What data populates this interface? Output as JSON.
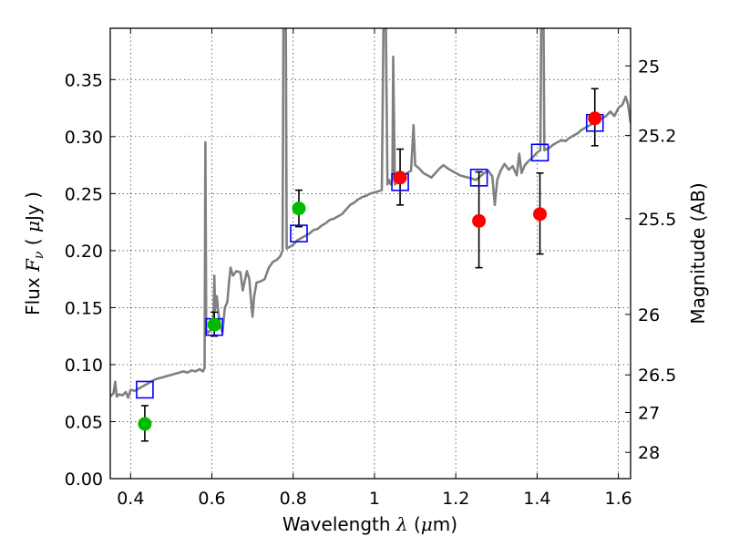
{
  "chart_data": {
    "type": "line",
    "xlabel": "Wavelength  λ (μm)",
    "ylabel": "Flux  F_ν  ( μJy )",
    "ylabel_parts": {
      "a": "Flux ",
      "fsym": "F",
      "fsub": "ν",
      "b": "  ( ",
      "mu": "μ",
      "c": "Jy )"
    },
    "xlabel_parts": {
      "a": "Wavelength  ",
      "lam": "λ",
      "b": " (",
      "mu": "μ",
      "c": "m)"
    },
    "y2label": "Magnitude (AB)",
    "xlim": [
      0.35,
      1.63
    ],
    "ylim": [
      0.0,
      0.395
    ],
    "xticks": [
      0.4,
      0.6,
      0.8,
      1.0,
      1.2,
      1.4,
      1.6
    ],
    "xtick_labels": [
      "0.4",
      "0.6",
      "0.8",
      "1",
      "1.2",
      "1.4",
      "1.6"
    ],
    "yticks": [
      0.0,
      0.05,
      0.1,
      0.15,
      0.2,
      0.25,
      0.3,
      0.35
    ],
    "ytick_labels": [
      "0.00",
      "0.05",
      "0.10",
      "0.15",
      "0.20",
      "0.25",
      "0.30",
      "0.35"
    ],
    "y2ticks": [
      {
        "label": "25",
        "flux": 0.362
      },
      {
        "label": "25.2",
        "flux": 0.301
      },
      {
        "label": "25.5",
        "flux": 0.228
      },
      {
        "label": "26",
        "flux": 0.144
      },
      {
        "label": "26.5",
        "flux": 0.091
      },
      {
        "label": "27",
        "flux": 0.058
      },
      {
        "label": "28",
        "flux": 0.023
      }
    ],
    "grid": true,
    "colors": {
      "model": "#808080",
      "box": "#0000ff",
      "green": "#00bb00",
      "red": "#ff0000",
      "error": "#000000"
    },
    "series": [
      {
        "kind": "model_spectrum",
        "points": [
          [
            0.35,
            0.072
          ],
          [
            0.358,
            0.075
          ],
          [
            0.362,
            0.085
          ],
          [
            0.366,
            0.072
          ],
          [
            0.372,
            0.074
          ],
          [
            0.38,
            0.073
          ],
          [
            0.388,
            0.076
          ],
          [
            0.394,
            0.071
          ],
          [
            0.4,
            0.078
          ],
          [
            0.41,
            0.077
          ],
          [
            0.42,
            0.079
          ],
          [
            0.43,
            0.081
          ],
          [
            0.44,
            0.083
          ],
          [
            0.45,
            0.085
          ],
          [
            0.46,
            0.087
          ],
          [
            0.47,
            0.088
          ],
          [
            0.48,
            0.089
          ],
          [
            0.49,
            0.09
          ],
          [
            0.5,
            0.091
          ],
          [
            0.51,
            0.092
          ],
          [
            0.52,
            0.093
          ],
          [
            0.53,
            0.094
          ],
          [
            0.54,
            0.093
          ],
          [
            0.55,
            0.095
          ],
          [
            0.56,
            0.094
          ],
          [
            0.57,
            0.096
          ],
          [
            0.578,
            0.094
          ],
          [
            0.582,
            0.097
          ],
          [
            0.584,
            0.295
          ],
          [
            0.586,
            0.13
          ],
          [
            0.59,
            0.128
          ],
          [
            0.596,
            0.13
          ],
          [
            0.6,
            0.135
          ],
          [
            0.604,
            0.14
          ],
          [
            0.606,
            0.178
          ],
          [
            0.608,
            0.148
          ],
          [
            0.612,
            0.16
          ],
          [
            0.616,
            0.145
          ],
          [
            0.62,
            0.135
          ],
          [
            0.626,
            0.128
          ],
          [
            0.632,
            0.15
          ],
          [
            0.638,
            0.155
          ],
          [
            0.642,
            0.172
          ],
          [
            0.646,
            0.185
          ],
          [
            0.652,
            0.178
          ],
          [
            0.66,
            0.182
          ],
          [
            0.67,
            0.181
          ],
          [
            0.676,
            0.165
          ],
          [
            0.68,
            0.172
          ],
          [
            0.686,
            0.182
          ],
          [
            0.692,
            0.175
          ],
          [
            0.696,
            0.158
          ],
          [
            0.7,
            0.142
          ],
          [
            0.704,
            0.16
          ],
          [
            0.71,
            0.172
          ],
          [
            0.72,
            0.173
          ],
          [
            0.73,
            0.175
          ],
          [
            0.74,
            0.185
          ],
          [
            0.75,
            0.19
          ],
          [
            0.76,
            0.192
          ],
          [
            0.768,
            0.195
          ],
          [
            0.774,
            0.2
          ],
          [
            0.776,
            0.395
          ],
          [
            0.782,
            0.395
          ],
          [
            0.784,
            0.202
          ],
          [
            0.79,
            0.203
          ],
          [
            0.8,
            0.205
          ],
          [
            0.81,
            0.209
          ],
          [
            0.82,
            0.211
          ],
          [
            0.83,
            0.213
          ],
          [
            0.84,
            0.215
          ],
          [
            0.85,
            0.218
          ],
          [
            0.86,
            0.219
          ],
          [
            0.87,
            0.222
          ],
          [
            0.88,
            0.224
          ],
          [
            0.89,
            0.227
          ],
          [
            0.9,
            0.228
          ],
          [
            0.91,
            0.23
          ],
          [
            0.92,
            0.232
          ],
          [
            0.93,
            0.236
          ],
          [
            0.94,
            0.24
          ],
          [
            0.95,
            0.242
          ],
          [
            0.96,
            0.245
          ],
          [
            0.97,
            0.247
          ],
          [
            0.98,
            0.248
          ],
          [
            0.99,
            0.25
          ],
          [
            1.0,
            0.251
          ],
          [
            1.01,
            0.252
          ],
          [
            1.018,
            0.253
          ],
          [
            1.022,
            0.395
          ],
          [
            1.028,
            0.395
          ],
          [
            1.032,
            0.258
          ],
          [
            1.036,
            0.262
          ],
          [
            1.04,
            0.258
          ],
          [
            1.044,
            0.262
          ],
          [
            1.046,
            0.37
          ],
          [
            1.05,
            0.258
          ],
          [
            1.06,
            0.262
          ],
          [
            1.07,
            0.265
          ],
          [
            1.08,
            0.268
          ],
          [
            1.09,
            0.27
          ],
          [
            1.096,
            0.31
          ],
          [
            1.1,
            0.275
          ],
          [
            1.11,
            0.272
          ],
          [
            1.12,
            0.268
          ],
          [
            1.13,
            0.266
          ],
          [
            1.14,
            0.264
          ],
          [
            1.15,
            0.268
          ],
          [
            1.16,
            0.272
          ],
          [
            1.17,
            0.275
          ],
          [
            1.18,
            0.272
          ],
          [
            1.19,
            0.27
          ],
          [
            1.2,
            0.268
          ],
          [
            1.21,
            0.266
          ],
          [
            1.22,
            0.265
          ],
          [
            1.23,
            0.264
          ],
          [
            1.24,
            0.263
          ],
          [
            1.25,
            0.262
          ],
          [
            1.26,
            0.265
          ],
          [
            1.27,
            0.268
          ],
          [
            1.28,
            0.27
          ],
          [
            1.29,
            0.265
          ],
          [
            1.296,
            0.24
          ],
          [
            1.302,
            0.262
          ],
          [
            1.31,
            0.27
          ],
          [
            1.32,
            0.276
          ],
          [
            1.33,
            0.271
          ],
          [
            1.34,
            0.274
          ],
          [
            1.35,
            0.266
          ],
          [
            1.356,
            0.285
          ],
          [
            1.362,
            0.268
          ],
          [
            1.37,
            0.275
          ],
          [
            1.38,
            0.279
          ],
          [
            1.39,
            0.282
          ],
          [
            1.4,
            0.286
          ],
          [
            1.408,
            0.288
          ],
          [
            1.41,
            0.395
          ],
          [
            1.416,
            0.395
          ],
          [
            1.418,
            0.288
          ],
          [
            1.43,
            0.29
          ],
          [
            1.44,
            0.293
          ],
          [
            1.45,
            0.295
          ],
          [
            1.46,
            0.297
          ],
          [
            1.47,
            0.296
          ],
          [
            1.48,
            0.299
          ],
          [
            1.49,
            0.301
          ],
          [
            1.5,
            0.303
          ],
          [
            1.51,
            0.306
          ],
          [
            1.52,
            0.308
          ],
          [
            1.53,
            0.31
          ],
          [
            1.54,
            0.312
          ],
          [
            1.55,
            0.315
          ],
          [
            1.56,
            0.316
          ],
          [
            1.57,
            0.318
          ],
          [
            1.58,
            0.322
          ],
          [
            1.59,
            0.318
          ],
          [
            1.6,
            0.325
          ],
          [
            1.61,
            0.328
          ],
          [
            1.618,
            0.335
          ],
          [
            1.624,
            0.328
          ],
          [
            1.63,
            0.312
          ]
        ]
      },
      {
        "kind": "model_bandpass",
        "points": [
          {
            "x": 0.435,
            "y": 0.078
          },
          {
            "x": 0.606,
            "y": 0.133
          },
          {
            "x": 0.814,
            "y": 0.215
          },
          {
            "x": 1.063,
            "y": 0.26
          },
          {
            "x": 1.257,
            "y": 0.264
          },
          {
            "x": 1.407,
            "y": 0.286
          },
          {
            "x": 1.542,
            "y": 0.312
          }
        ]
      },
      {
        "kind": "observed",
        "points": [
          {
            "x": 0.435,
            "y": 0.048,
            "lo": 0.033,
            "hi": 0.064,
            "color": "green"
          },
          {
            "x": 0.606,
            "y": 0.135,
            "lo": 0.125,
            "hi": 0.146,
            "color": "green"
          },
          {
            "x": 0.814,
            "y": 0.237,
            "lo": 0.221,
            "hi": 0.253,
            "color": "green"
          },
          {
            "x": 1.063,
            "y": 0.264,
            "lo": 0.24,
            "hi": 0.289,
            "color": "red"
          },
          {
            "x": 1.257,
            "y": 0.226,
            "lo": 0.185,
            "hi": 0.269,
            "color": "red"
          },
          {
            "x": 1.407,
            "y": 0.232,
            "lo": 0.197,
            "hi": 0.268,
            "color": "red"
          },
          {
            "x": 1.542,
            "y": 0.316,
            "lo": 0.292,
            "hi": 0.342,
            "color": "red"
          }
        ]
      }
    ]
  }
}
